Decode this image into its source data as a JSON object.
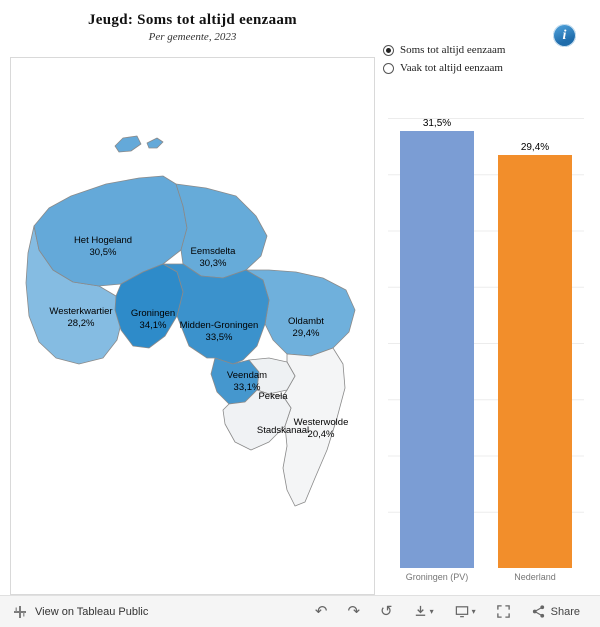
{
  "header": {
    "title": "Jeugd: Soms tot altijd eenzaam",
    "subtitle": "Per gemeente, 2023"
  },
  "controls": {
    "options": [
      {
        "label": "Soms tot altijd eenzaam",
        "selected": true
      },
      {
        "label": "Vaak tot altijd eenzaam",
        "selected": false
      }
    ],
    "info_icon": "i"
  },
  "map": {
    "regions": [
      {
        "id": "het-hogeland",
        "name": "Het Hogeland",
        "value": "30,5%",
        "color": "#64a9d9"
      },
      {
        "id": "eemsdelta",
        "name": "Eemsdelta",
        "value": "30,3%",
        "color": "#66abd9"
      },
      {
        "id": "westerkwartier",
        "name": "Westerkwartier",
        "value": "28,2%",
        "color": "#85bce2"
      },
      {
        "id": "groningen",
        "name": "Groningen",
        "value": "34,1%",
        "color": "#2e8bc9"
      },
      {
        "id": "midden-groningen",
        "name": "Midden-Groningen",
        "value": "33,5%",
        "color": "#3b92cc"
      },
      {
        "id": "oldambt",
        "name": "Oldambt",
        "value": "29,4%",
        "color": "#6fb0dc"
      },
      {
        "id": "veendam",
        "name": "Veendam",
        "value": "33,1%",
        "color": "#4597ce"
      },
      {
        "id": "pekela",
        "name": "Pekela",
        "value": "",
        "color": "#eef1f3"
      },
      {
        "id": "stadskanaal",
        "name": "Stadskanaal",
        "value": "",
        "color": "#f0f2f4"
      },
      {
        "id": "westerwolde",
        "name": "Westerwolde",
        "value": "20,4%",
        "color": "#f4f5f6"
      }
    ]
  },
  "chart_data": {
    "type": "bar",
    "categories": [
      "Groningen (PV)",
      "Nederland"
    ],
    "values": [
      31.5,
      29.4
    ],
    "value_labels": [
      "31,5%",
      "29,4%"
    ],
    "colors": [
      "#7b9dd4",
      "#f28e2b"
    ],
    "title": "",
    "xlabel": "",
    "ylabel": "",
    "ylim": [
      0,
      32
    ],
    "grid": true,
    "legend": "none"
  },
  "toolbar": {
    "view_label": "View on Tableau Public",
    "share_label": "Share"
  }
}
